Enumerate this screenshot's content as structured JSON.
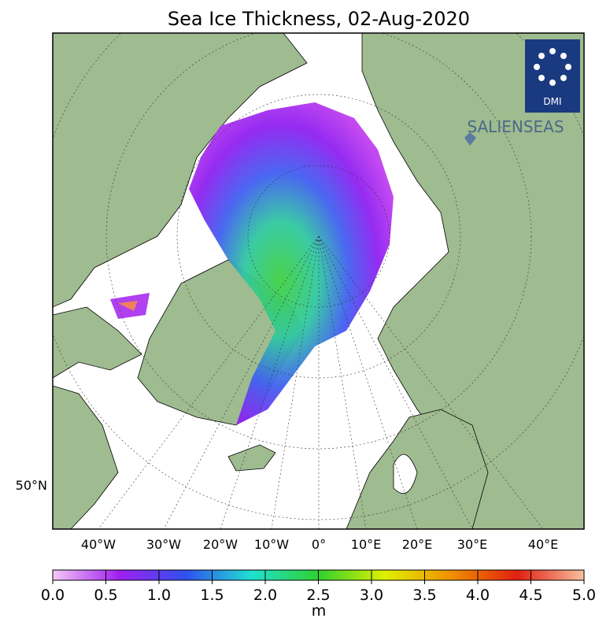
{
  "title": "Sea Ice Thickness, 02-Aug-2020",
  "longitude_labels": [
    "40°W",
    "30°W",
    "20°W",
    "10°W",
    "0°",
    "10°E",
    "20°E",
    "30°E",
    "40°E"
  ],
  "latitude_label": "50°N",
  "logo": {
    "agency": "DMI",
    "partner": "SALIENSEAS"
  },
  "colorbar": {
    "range": [
      0,
      5
    ],
    "unit": "m",
    "colors": [
      "#f5c8f5",
      "#a020f0",
      "#3050f0",
      "#20e0d0",
      "#30d030",
      "#e0f000",
      "#f09000",
      "#e02010",
      "#f8c0a0"
    ],
    "ticks": [
      {
        "value": 0,
        "label": "0.0"
      },
      {
        "value": 0.5,
        "label": "0.5"
      },
      {
        "value": 1,
        "label": "1.0"
      },
      {
        "value": 1.5,
        "label": "1.5"
      },
      {
        "value": 2,
        "label": "2.0"
      },
      {
        "value": 2.5,
        "label": "2.5"
      },
      {
        "value": 3,
        "label": "3.0"
      },
      {
        "value": 3.5,
        "label": "3.5"
      },
      {
        "value": 4,
        "label": "4.0"
      },
      {
        "value": 4.5,
        "label": "4.5"
      },
      {
        "value": 5,
        "label": "5.0"
      }
    ]
  }
}
